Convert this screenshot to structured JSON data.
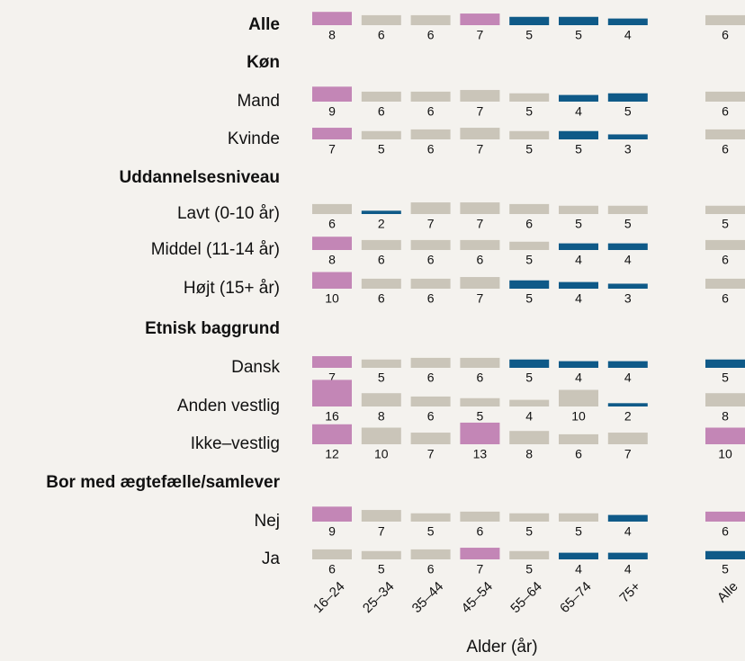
{
  "chart_data": {
    "type": "bar-grid",
    "categories": [
      "16–24",
      "25–34",
      "35–44",
      "45–54",
      "55–64",
      "65–74",
      "75+",
      "Alle"
    ],
    "xlabel": "Alder (år)",
    "rows": [
      {
        "label": "Alle",
        "bold": true,
        "values": [
          8,
          6,
          6,
          7,
          5,
          5,
          4,
          6
        ],
        "colors": [
          "#c386b6",
          "#cac5b9",
          "#cac5b9",
          "#c386b6",
          "#0f5a88",
          "#0f5a88",
          "#0f5a88",
          "#cac5b9"
        ]
      },
      {
        "label": "Køn",
        "bold": true
      },
      {
        "label": "Mand",
        "values": [
          9,
          6,
          6,
          7,
          5,
          4,
          5,
          6
        ],
        "colors": [
          "#c386b6",
          "#cac5b9",
          "#cac5b9",
          "#cac5b9",
          "#cac5b9",
          "#0f5a88",
          "#0f5a88",
          "#cac5b9"
        ]
      },
      {
        "label": "Kvinde",
        "values": [
          7,
          5,
          6,
          7,
          5,
          5,
          3,
          6
        ],
        "colors": [
          "#c386b6",
          "#cac5b9",
          "#cac5b9",
          "#cac5b9",
          "#cac5b9",
          "#0f5a88",
          "#0f5a88",
          "#cac5b9"
        ]
      },
      {
        "label": "Uddannelsesniveau",
        "bold": true
      },
      {
        "label": "Lavt (0-10 år)",
        "values": [
          6,
          2,
          7,
          7,
          6,
          5,
          5,
          5
        ],
        "colors": [
          "#cac5b9",
          "#0f5a88",
          "#cac5b9",
          "#cac5b9",
          "#cac5b9",
          "#cac5b9",
          "#cac5b9",
          "#cac5b9"
        ]
      },
      {
        "label": "Middel (11-14 år)",
        "values": [
          8,
          6,
          6,
          6,
          5,
          4,
          4,
          6
        ],
        "colors": [
          "#c386b6",
          "#cac5b9",
          "#cac5b9",
          "#cac5b9",
          "#cac5b9",
          "#0f5a88",
          "#0f5a88",
          "#cac5b9"
        ]
      },
      {
        "label": "Højt (15+ år)",
        "values": [
          10,
          6,
          6,
          7,
          5,
          4,
          3,
          6
        ],
        "colors": [
          "#c386b6",
          "#cac5b9",
          "#cac5b9",
          "#cac5b9",
          "#0f5a88",
          "#0f5a88",
          "#0f5a88",
          "#cac5b9"
        ]
      },
      {
        "label": "Etnisk baggrund",
        "bold": true
      },
      {
        "label": "Dansk",
        "values": [
          7,
          5,
          6,
          6,
          5,
          4,
          4,
          5
        ],
        "colors": [
          "#c386b6",
          "#cac5b9",
          "#cac5b9",
          "#cac5b9",
          "#0f5a88",
          "#0f5a88",
          "#0f5a88",
          "#0f5a88"
        ]
      },
      {
        "label": "Anden vestlig",
        "values": [
          16,
          8,
          6,
          5,
          4,
          10,
          2,
          8
        ],
        "colors": [
          "#c386b6",
          "#cac5b9",
          "#cac5b9",
          "#cac5b9",
          "#cac5b9",
          "#cac5b9",
          "#0f5a88",
          "#cac5b9"
        ]
      },
      {
        "label": "Ikke–vestlig",
        "values": [
          12,
          10,
          7,
          13,
          8,
          6,
          7,
          10
        ],
        "colors": [
          "#c386b6",
          "#cac5b9",
          "#cac5b9",
          "#c386b6",
          "#cac5b9",
          "#cac5b9",
          "#cac5b9",
          "#c386b6"
        ]
      },
      {
        "label": "Bor med ægtefælle/samlever",
        "bold": true
      },
      {
        "label": "Nej",
        "values": [
          9,
          7,
          5,
          6,
          5,
          5,
          4,
          6
        ],
        "colors": [
          "#c386b6",
          "#cac5b9",
          "#cac5b9",
          "#cac5b9",
          "#cac5b9",
          "#cac5b9",
          "#0f5a88",
          "#c386b6"
        ]
      },
      {
        "label": "Ja",
        "values": [
          6,
          5,
          6,
          7,
          5,
          4,
          4,
          5
        ],
        "colors": [
          "#cac5b9",
          "#cac5b9",
          "#cac5b9",
          "#c386b6",
          "#cac5b9",
          "#0f5a88",
          "#0f5a88",
          "#0f5a88"
        ]
      }
    ]
  }
}
